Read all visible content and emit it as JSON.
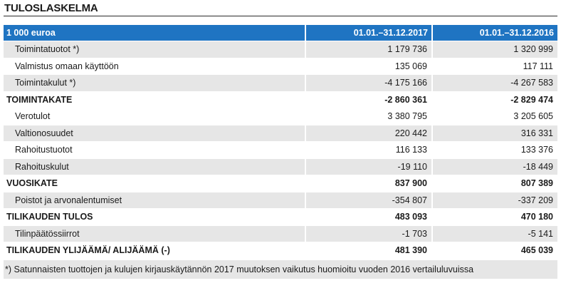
{
  "title": "TULOSLASKELMA",
  "table": {
    "header": {
      "label": "1 000 euroa",
      "col1": "01.01.–31.12.2017",
      "col2": "01.01.–31.12.2016"
    },
    "rows": [
      {
        "label": "Toimintatuotot *)",
        "v1": "1 179 736",
        "v2": "1 320 999"
      },
      {
        "label": "Valmistus omaan käyttöön",
        "v1": "135 069",
        "v2": "117 111"
      },
      {
        "label": "Toimintakulut *)",
        "v1": "-4 175 166",
        "v2": "-4 267 583"
      },
      {
        "label": "TOIMINTAKATE",
        "v1": "-2 860 361",
        "v2": "-2 829 474"
      },
      {
        "label": "Verotulot",
        "v1": "3 380 795",
        "v2": "3 205 605"
      },
      {
        "label": "Valtionosuudet",
        "v1": "220 442",
        "v2": "316 331"
      },
      {
        "label": "Rahoitustuotot",
        "v1": "116 133",
        "v2": "133 376"
      },
      {
        "label": "Rahoituskulut",
        "v1": "-19 110",
        "v2": "-18 449"
      },
      {
        "label": "VUOSIKATE",
        "v1": "837 900",
        "v2": "807 389"
      },
      {
        "label": "Poistot ja arvonalentumiset",
        "v1": "-354 807",
        "v2": "-337 209"
      },
      {
        "label": "TILIKAUDEN TULOS",
        "v1": "483 093",
        "v2": "470 180"
      },
      {
        "label": "Tilinpäätössiirrot",
        "v1": "-1 703",
        "v2": "-5 141"
      },
      {
        "label": "TILIKAUDEN YLIJÄÄMÄ/ ALIJÄÄMÄ (-)",
        "v1": "481 390",
        "v2": "465 039"
      }
    ]
  },
  "footnote": "*) Satunnaisten tuottojen ja kulujen kirjauskäytännön 2017 muutoksen vaikutus huomioitu vuoden 2016 vertailuluvuissa",
  "colors": {
    "header_bg": "#1f74c2",
    "row_shade": "#e6e6e6"
  }
}
